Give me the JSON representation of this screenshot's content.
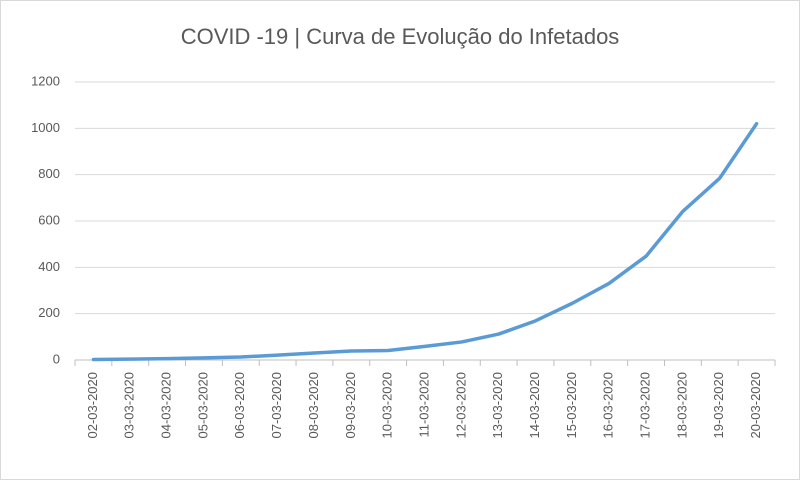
{
  "chart_data": {
    "type": "line",
    "title": "COVID -19  | Curva de Evolução do Infetados",
    "categories": [
      "02-03-2020",
      "03-03-2020",
      "04-03-2020",
      "05-03-2020",
      "06-03-2020",
      "07-03-2020",
      "08-03-2020",
      "09-03-2020",
      "10-03-2020",
      "11-03-2020",
      "12-03-2020",
      "13-03-2020",
      "14-03-2020",
      "15-03-2020",
      "16-03-2020",
      "17-03-2020",
      "18-03-2020",
      "19-03-2020",
      "20-03-2020"
    ],
    "values": [
      2,
      4,
      6,
      9,
      13,
      21,
      30,
      39,
      41,
      59,
      78,
      112,
      169,
      245,
      331,
      448,
      642,
      785,
      1020
    ],
    "color": "#5b9bd5",
    "ylim": [
      0,
      1200
    ],
    "yticks": [
      0,
      200,
      400,
      600,
      800,
      1000,
      1200
    ],
    "grid": true
  }
}
